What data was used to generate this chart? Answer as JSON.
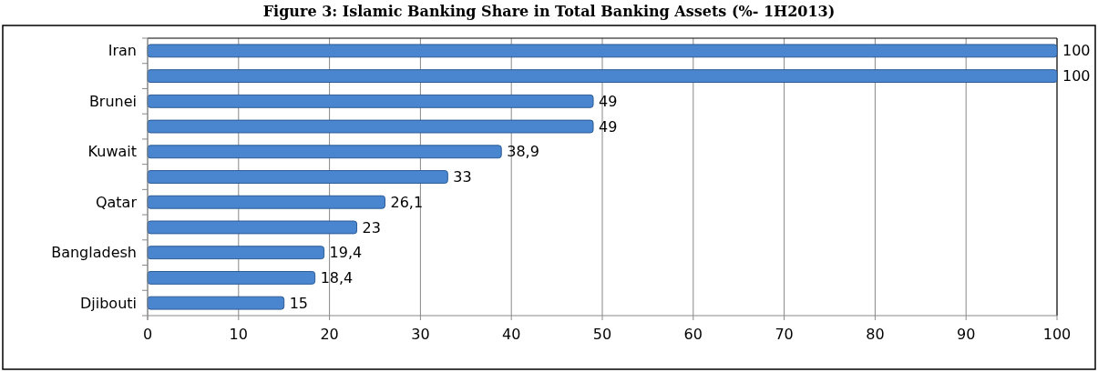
{
  "chart_data": {
    "type": "bar",
    "orientation": "horizontal",
    "title": "Figure 3: Islamic Banking Share in Total Banking Assets (%- 1H2013)",
    "categories": [
      "Iran",
      null,
      "Brunei",
      null,
      "Kuwait",
      null,
      "Qatar",
      null,
      "Bangladesh",
      null,
      "Djibouti"
    ],
    "values": [
      100,
      100,
      49,
      49,
      38.9,
      33,
      26.1,
      23,
      19.4,
      18.4,
      15
    ],
    "value_labels": [
      "100",
      "100",
      "49",
      "49",
      "38,9",
      "33",
      "26,1",
      "23",
      "19,4",
      "18,4",
      "15"
    ],
    "color": "#4a86d0",
    "xlim": [
      0,
      100
    ],
    "xticks": [
      0,
      10,
      20,
      30,
      40,
      50,
      60,
      70,
      80,
      90,
      100
    ],
    "grid": "x"
  }
}
